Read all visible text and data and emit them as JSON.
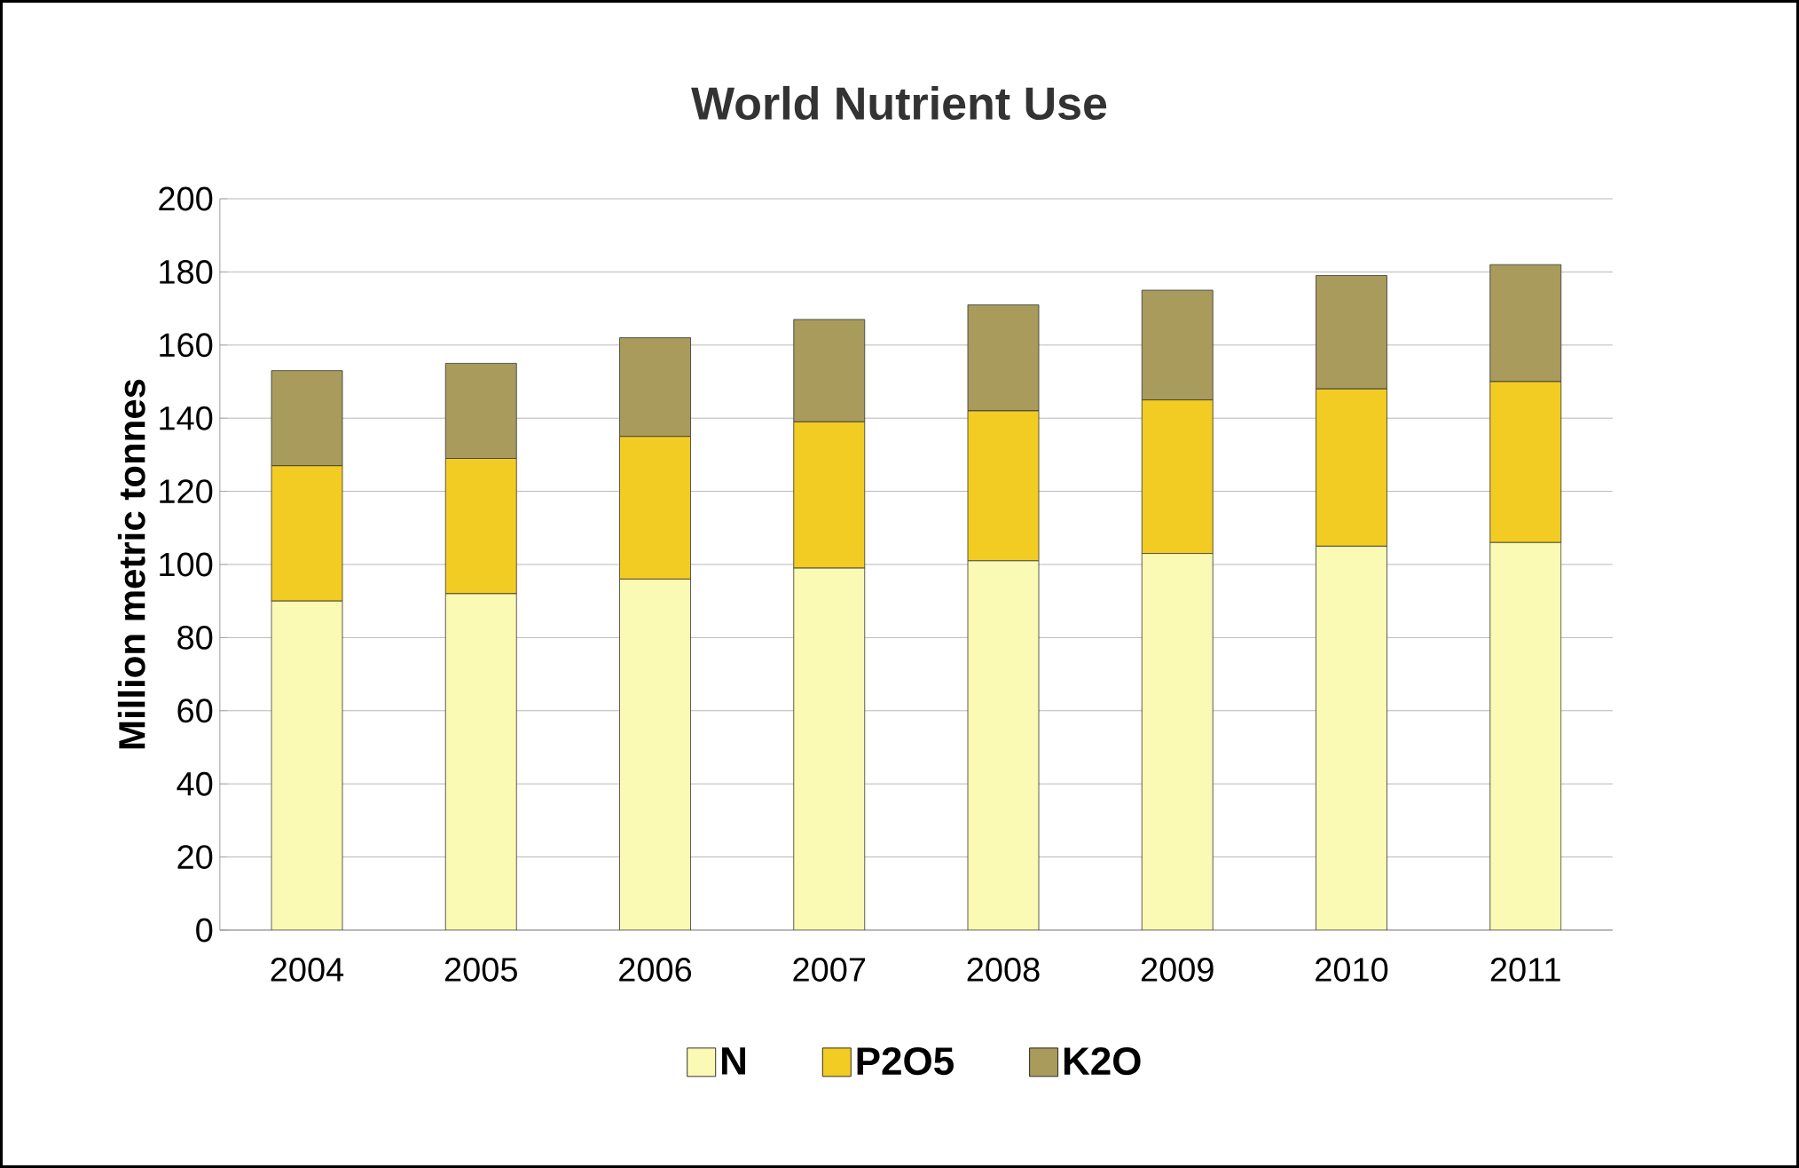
{
  "chart_data": {
    "type": "bar",
    "stacked": true,
    "title": "World Nutrient Use",
    "ylabel": "Million metric tonnes",
    "categories": [
      "2004",
      "2005",
      "2006",
      "2007",
      "2008",
      "2009",
      "2010",
      "2011"
    ],
    "series": [
      {
        "name": "N",
        "color": "#fafab4",
        "values": [
          90,
          92,
          96,
          99,
          101,
          103,
          105,
          106
        ]
      },
      {
        "name": "P2O5",
        "color": "#f2cc22",
        "values": [
          37,
          37,
          39,
          40,
          41,
          42,
          43,
          44
        ]
      },
      {
        "name": "K2O",
        "color": "#a89b5c",
        "values": [
          26,
          26,
          27,
          28,
          29,
          30,
          31,
          32
        ]
      }
    ],
    "ylim": [
      0,
      200
    ],
    "yticks": [
      0,
      20,
      40,
      60,
      80,
      100,
      120,
      140,
      160,
      180,
      200
    ],
    "grid": "y",
    "legend": "bottom"
  }
}
